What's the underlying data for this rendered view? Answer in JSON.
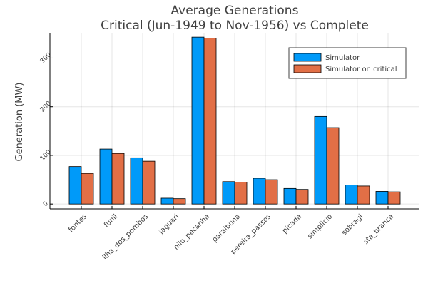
{
  "chart_data": {
    "type": "bar",
    "title": [
      "Average Generations",
      "Critical (Jun-1949 to Nov-1956) vs Complete"
    ],
    "xlabel": "",
    "ylabel": "Generation (MW)",
    "categories": [
      "fontes",
      "funil",
      "ilha_dos_pombos",
      "jaguari",
      "nilo_pecanha",
      "paraibuna",
      "pereira_passos",
      "picada",
      "simplicio",
      "sobragi",
      "sta_branca"
    ],
    "series": [
      {
        "name": "Simulator",
        "color": "#009af9",
        "values": [
          77,
          113,
          95,
          12,
          343,
          46,
          53,
          32,
          180,
          39,
          26
        ]
      },
      {
        "name": "Simulator on critical",
        "color": "#e26f46",
        "values": [
          63,
          104,
          88,
          11,
          341,
          45,
          50,
          30,
          157,
          37,
          25
        ]
      }
    ],
    "ylim": [
      -10,
      352
    ],
    "yticks": [
      0,
      100,
      200,
      300
    ],
    "grid": true,
    "legend_position": "top-right"
  }
}
